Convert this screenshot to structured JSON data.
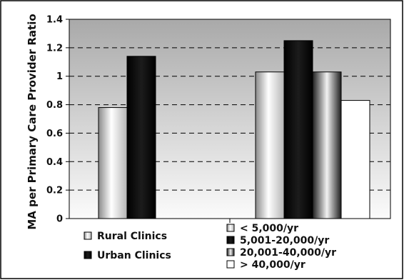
{
  "chart_data": {
    "type": "bar",
    "ylabel": "MA per Primary Care Provider Ratio",
    "ylim": [
      0,
      1.4
    ],
    "yticks": [
      "0",
      "0.2",
      "0.4",
      "0.6",
      "0.8",
      "1",
      "1.2",
      "1.4"
    ],
    "grid": "horizontal dashed",
    "groups": [
      {
        "bars": [
          {
            "name": "Rural Clinics",
            "value": 0.78
          },
          {
            "name": "Urban Clinics",
            "value": 1.14
          }
        ]
      },
      {
        "bars": [
          {
            "name": "< 5,000/yr",
            "value": 1.03
          },
          {
            "name": "5,001-20,000/yr",
            "value": 1.25
          },
          {
            "name": "20,001-40,000/yr",
            "value": 1.03
          },
          {
            "name": "> 40,000/yr",
            "value": 0.83
          }
        ]
      }
    ],
    "legends": [
      {
        "placement": "bottom-left",
        "items": [
          {
            "label": "Rural Clinics",
            "style": "cylinder"
          },
          {
            "label": "Urban Clinics",
            "style": "black"
          }
        ]
      },
      {
        "placement": "bottom-right",
        "items": [
          {
            "label": "< 5,000/yr",
            "style": "cylinder"
          },
          {
            "label": "5,001-20,000/yr",
            "style": "black"
          },
          {
            "label": "20,001-40,000/yr",
            "style": "gray"
          },
          {
            "label": "> 40,000/yr",
            "style": "white"
          }
        ]
      }
    ]
  }
}
